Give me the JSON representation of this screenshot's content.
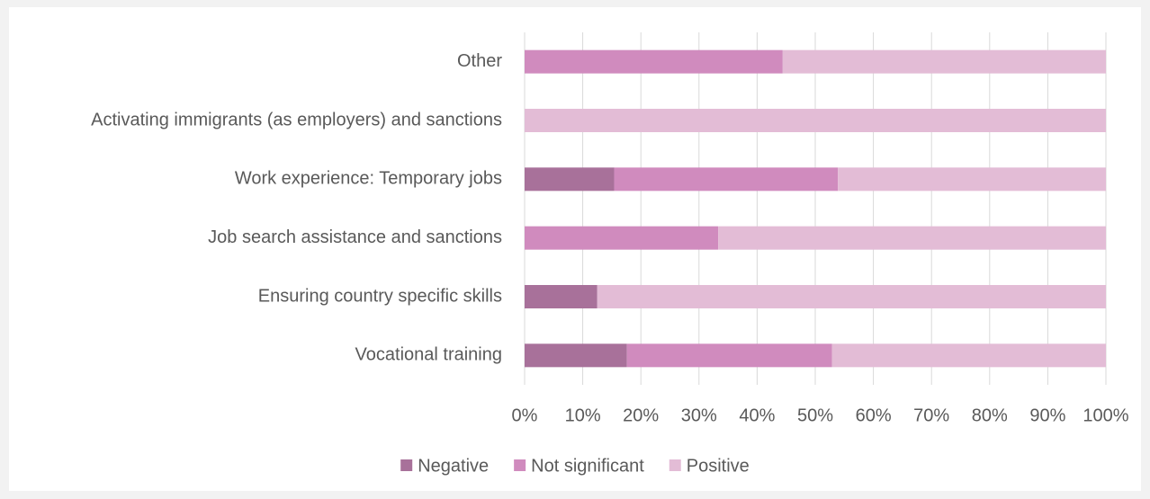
{
  "chart_data": {
    "type": "stacked-bar-horizontal",
    "categories": [
      "Other",
      "Activating immigrants (as employers) and sanctions",
      "Work experience: Temporary jobs",
      "Job search assistance and sanctions",
      "Ensuring country specific skills",
      "Vocational training"
    ],
    "series": [
      {
        "name": "Negative",
        "color": "#a8719a",
        "values": [
          0,
          0,
          15.4,
          0,
          12.5,
          17.6
        ]
      },
      {
        "name": "Not significant",
        "color": "#d08bbe",
        "values": [
          44.4,
          0,
          38.5,
          33.3,
          0,
          35.3
        ]
      },
      {
        "name": "Positive",
        "color": "#e3bcd6",
        "values": [
          55.6,
          100,
          46.1,
          66.7,
          87.5,
          47.1
        ]
      }
    ],
    "xlim": [
      0,
      100
    ],
    "xticks": [
      {
        "value": 0,
        "label": "0%"
      },
      {
        "value": 10,
        "label": "10%"
      },
      {
        "value": 20,
        "label": "20%"
      },
      {
        "value": 30,
        "label": "30%"
      },
      {
        "value": 40,
        "label": "40%"
      },
      {
        "value": 50,
        "label": "50%"
      },
      {
        "value": 60,
        "label": "60%"
      },
      {
        "value": 70,
        "label": "70%"
      },
      {
        "value": 80,
        "label": "80%"
      },
      {
        "value": 90,
        "label": "90%"
      },
      {
        "value": 100,
        "label": "100%"
      }
    ],
    "grid": true,
    "legend": "bottom"
  }
}
